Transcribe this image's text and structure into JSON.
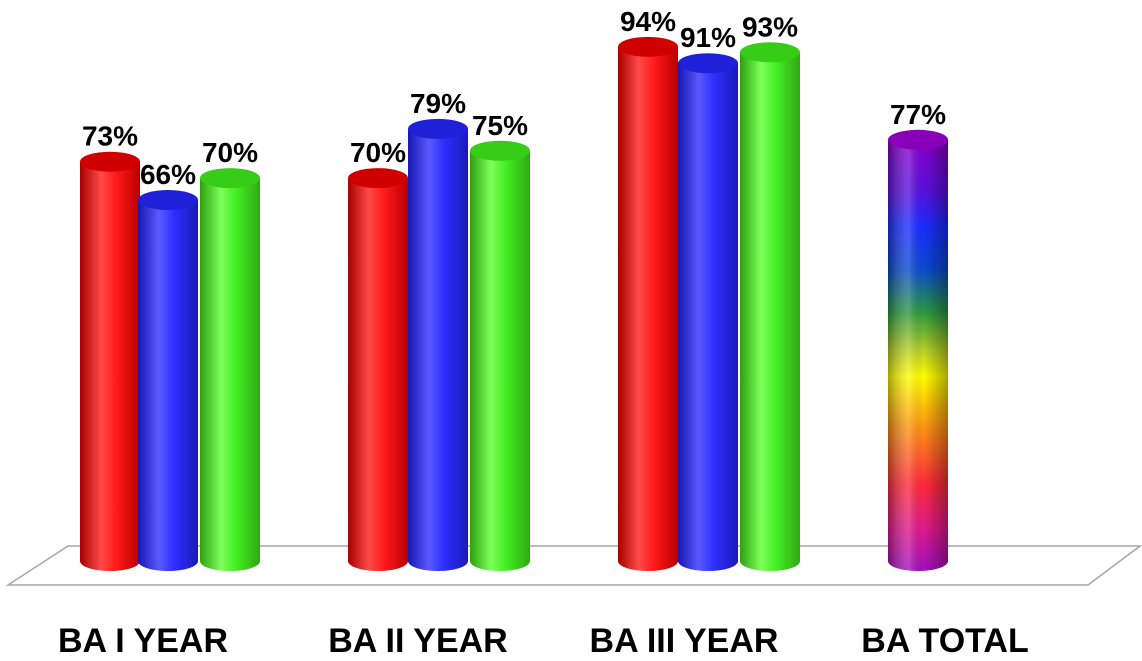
{
  "chart_data": {
    "type": "bar",
    "style": "3d-cylinder",
    "categories": [
      "BA I YEAR",
      "BA II YEAR",
      "BA III YEAR",
      "BA TOTAL"
    ],
    "series": [
      {
        "color": "#ff1a1a",
        "values": [
          73,
          70,
          94,
          null
        ]
      },
      {
        "color": "#2e2eff",
        "values": [
          66,
          79,
          91,
          null
        ]
      },
      {
        "color": "#44ee22",
        "values": [
          70,
          75,
          93,
          null
        ]
      },
      {
        "color": "rainbow-gradient",
        "values": [
          null,
          null,
          null,
          77
        ]
      }
    ],
    "data_labels": [
      [
        "73%",
        "66%",
        "70%"
      ],
      [
        "70%",
        "79%",
        "75%"
      ],
      [
        "94%",
        "91%",
        "93%"
      ],
      [
        "77%"
      ]
    ],
    "value_suffix": "%",
    "title": "",
    "xlabel": "",
    "ylabel": "",
    "ylim": [
      0,
      100
    ],
    "grid": false,
    "legend": "none",
    "floor_color": "#a6a6a6"
  }
}
